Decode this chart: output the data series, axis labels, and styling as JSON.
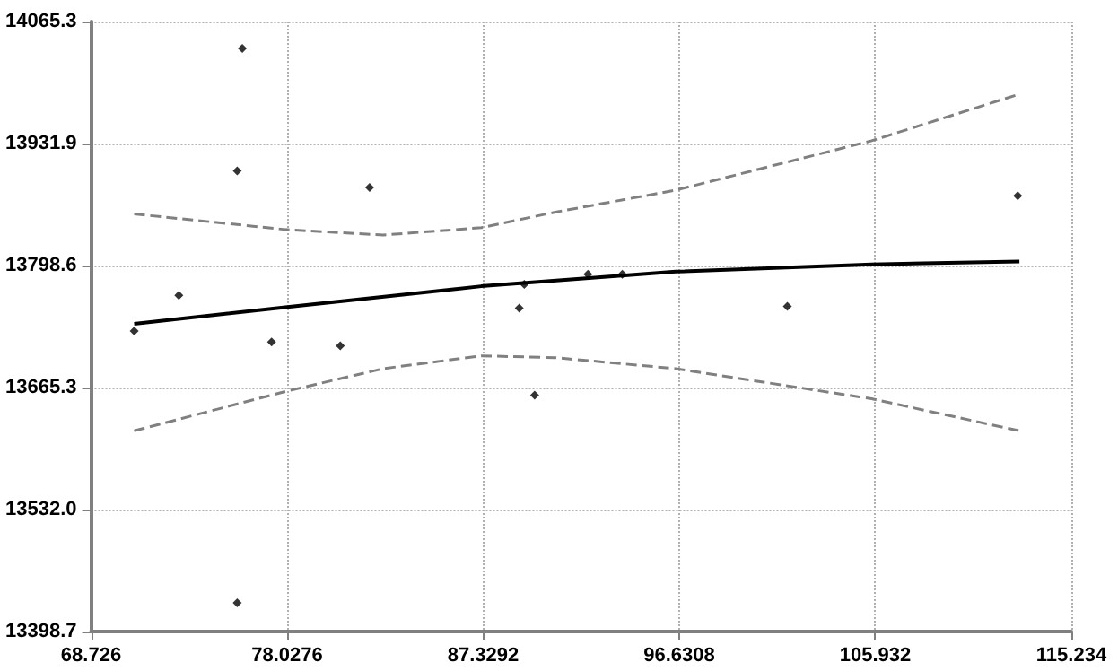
{
  "chart_data": {
    "type": "scatter",
    "xlim": [
      68.726,
      115.234
    ],
    "xticks": [
      68.726,
      78.0276,
      87.3292,
      96.6308,
      105.932,
      115.234
    ],
    "ylim": [
      13398.7,
      14065.3
    ],
    "yticks": [
      13398.7,
      {
        "value": 13532,
        "label": "13532.0"
      },
      13665.3,
      13798.6,
      13931.9,
      14065.3
    ],
    "grid": true,
    "series": [
      {
        "color": "#000000",
        "marker": "diamond",
        "x": [
          70.77,
          72.89,
          75.9,
          75.66,
          75.66,
          77.29,
          80.55,
          81.94,
          89.04,
          89.28,
          89.77,
          92.3,
          93.93,
          101.76,
          112.69
        ],
        "values": [
          13727,
          13766,
          14036,
          13902,
          13430,
          13715,
          13711,
          13884,
          13752,
          13778,
          13657,
          13789,
          13789,
          13754,
          13875
        ]
      },
      {
        "type": "line",
        "color": "#000000",
        "line_style": "solid",
        "x": [
          70.77,
          77.94,
          87.24,
          96.46,
          105.76,
          112.77
        ],
        "values": [
          13735,
          13753,
          13776,
          13792,
          13800,
          13803
        ]
      },
      {
        "type": "line",
        "color": "#808080",
        "line_style": "dashed",
        "x": [
          70.77,
          77.94,
          82.59,
          87.24,
          90.75,
          96.46,
          105.76,
          112.77
        ],
        "values": [
          13855,
          13838,
          13832,
          13840,
          13857,
          13881,
          13935,
          13986
        ]
      },
      {
        "type": "line",
        "color": "#808080",
        "line_style": "dashed",
        "x": [
          70.77,
          77.94,
          82.59,
          87.24,
          90.75,
          96.46,
          105.76,
          112.77
        ],
        "values": [
          13618,
          13661,
          13686,
          13700,
          13698,
          13686,
          13653,
          13618
        ]
      }
    ]
  }
}
